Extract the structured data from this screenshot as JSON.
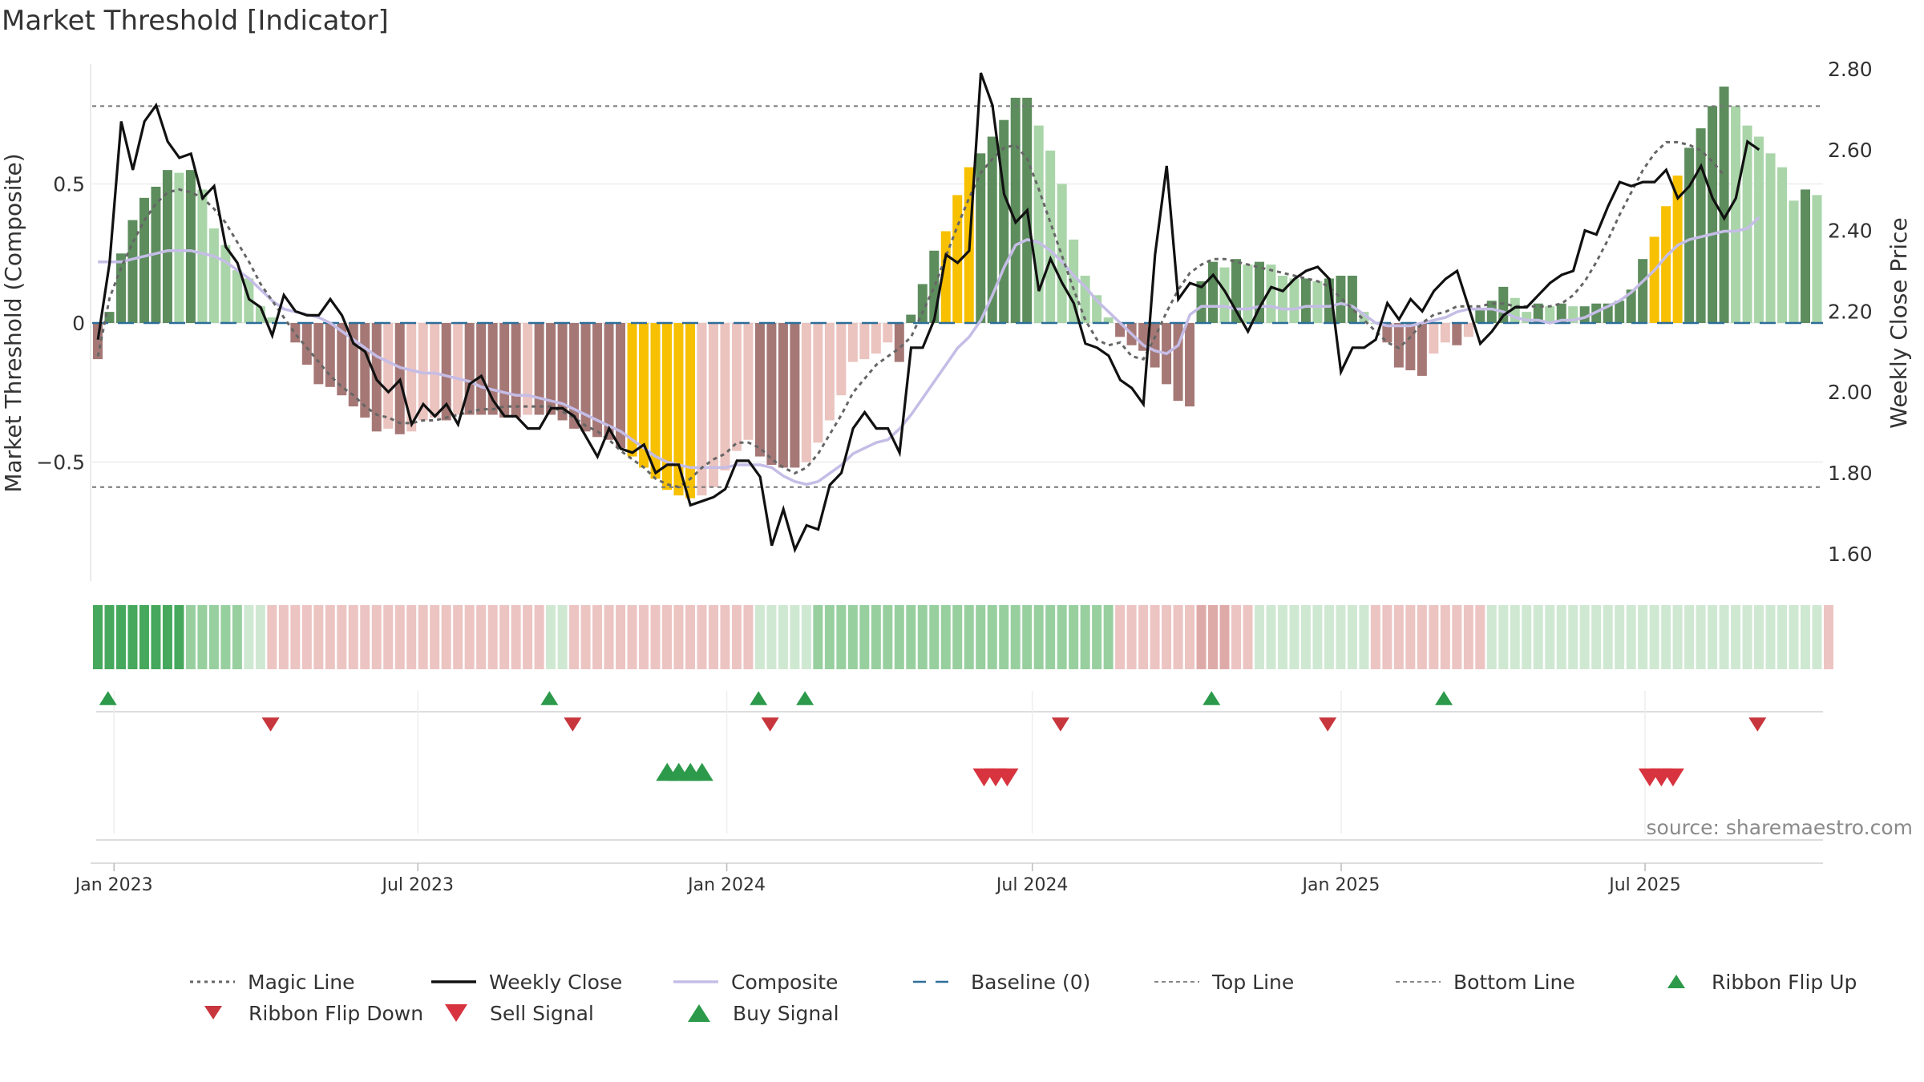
{
  "title": "Market Threshold [Indicator]",
  "source": "source: sharemaestro.com",
  "colors": {
    "dark_green": "#5d8d5d",
    "light_green": "#a9d5a9",
    "dark_red": "#a57876",
    "light_red": "#ebc3bf",
    "gold": "#f7c000",
    "weekly_close": "#111111",
    "composite": "#c5bde6",
    "magic": "#666666",
    "baseline": "#2d6e99",
    "buy": "#2c9a4a",
    "sell": "#d7343f"
  },
  "chart_data": {
    "type": "bar",
    "x_axis": {
      "ticks": [
        "Jan 2023",
        "Jul 2023",
        "Jan 2024",
        "Jul 2024",
        "Jan 2025",
        "Jul 2025"
      ],
      "range": [
        "2022-12-19",
        "2025-10-15"
      ]
    },
    "left_axis": {
      "label": "Market Threshold (Composite)",
      "ticks": [
        "0.5",
        "0",
        "−0.5"
      ],
      "tick_values": [
        0.5,
        0,
        -0.5
      ],
      "ylim": [
        -0.93,
        0.93
      ]
    },
    "right_axis": {
      "label": "Weekly Close Price",
      "ticks": [
        "2.80",
        "2.60",
        "2.40",
        "2.20",
        "2.00",
        "1.80",
        "1.60"
      ],
      "tick_values": [
        2.8,
        2.6,
        2.4,
        2.2,
        2.0,
        1.8,
        1.6
      ],
      "ylim": [
        1.52,
        2.82
      ]
    },
    "top_line": 0.78,
    "bottom_line": -0.59,
    "baseline": 0,
    "composite_bars": [
      -0.13,
      0.04,
      0.25,
      0.37,
      0.45,
      0.49,
      0.55,
      0.54,
      0.55,
      0.48,
      0.34,
      0.28,
      0.19,
      0.16,
      0.06,
      0.02,
      0.0,
      -0.07,
      -0.15,
      -0.22,
      -0.23,
      -0.26,
      -0.3,
      -0.34,
      -0.39,
      -0.38,
      -0.4,
      -0.39,
      -0.35,
      -0.34,
      -0.35,
      -0.33,
      -0.33,
      -0.33,
      -0.33,
      -0.34,
      -0.34,
      -0.33,
      -0.33,
      -0.33,
      -0.35,
      -0.38,
      -0.39,
      -0.41,
      -0.42,
      -0.45,
      -0.48,
      -0.52,
      -0.56,
      -0.6,
      -0.62,
      -0.63,
      -0.62,
      -0.59,
      -0.53,
      -0.46,
      -0.42,
      -0.48,
      -0.51,
      -0.52,
      -0.52,
      -0.5,
      -0.43,
      -0.35,
      -0.26,
      -0.14,
      -0.13,
      -0.11,
      -0.07,
      -0.14,
      0.03,
      0.14,
      0.26,
      0.33,
      0.46,
      0.56,
      0.61,
      0.67,
      0.73,
      0.81,
      0.81,
      0.71,
      0.62,
      0.5,
      0.3,
      0.17,
      0.1,
      0.02,
      -0.05,
      -0.08,
      -0.1,
      -0.16,
      -0.22,
      -0.28,
      -0.3,
      0.15,
      0.22,
      0.2,
      0.23,
      0.21,
      0.22,
      0.21,
      0.17,
      0.16,
      0.16,
      0.15,
      0.16,
      0.17,
      0.17,
      0.04,
      0.0,
      -0.07,
      -0.16,
      -0.17,
      -0.19,
      -0.11,
      -0.07,
      -0.08,
      -0.05,
      0.05,
      0.08,
      0.13,
      0.09,
      0.04,
      0.07,
      0.06,
      0.07,
      0.06,
      0.06,
      0.07,
      0.07,
      0.08,
      0.12,
      0.23,
      0.31,
      0.42,
      0.53,
      0.63,
      0.7,
      0.78,
      0.85,
      0.78,
      0.71,
      0.67,
      0.61,
      0.56,
      0.44,
      0.48,
      0.46
    ],
    "gold_bar_ranges": [
      [
        46,
        51
      ],
      [
        73,
        75
      ],
      [
        134,
        136
      ]
    ],
    "weekly_close": {
      "values": [
        2.13,
        2.32,
        2.67,
        2.55,
        2.67,
        2.71,
        2.62,
        2.58,
        2.59,
        2.48,
        2.51,
        2.36,
        2.32,
        2.23,
        2.21,
        2.14,
        2.24,
        2.2,
        2.19,
        2.19,
        2.23,
        2.19,
        2.12,
        2.1,
        2.03,
        2.0,
        2.03,
        1.92,
        1.97,
        1.94,
        1.97,
        1.92,
        2.02,
        2.04,
        1.98,
        1.94,
        1.94,
        1.91,
        1.91,
        1.96,
        1.96,
        1.94,
        1.89,
        1.84,
        1.91,
        1.86,
        1.85,
        1.87,
        1.8,
        1.82,
        1.82,
        1.72,
        1.73,
        1.74,
        1.76,
        1.83,
        1.83,
        1.79,
        1.62,
        1.71,
        1.61,
        1.67,
        1.66,
        1.77,
        1.8,
        1.91,
        1.95,
        1.91,
        1.91,
        1.85,
        2.11,
        2.11,
        2.18,
        2.34,
        2.32,
        2.35,
        2.79,
        2.71,
        2.49,
        2.42,
        2.45,
        2.25,
        2.33,
        2.27,
        2.22,
        2.12,
        2.11,
        2.09,
        2.03,
        2.01,
        1.97,
        2.34,
        2.56,
        2.23,
        2.27,
        2.26,
        2.29,
        2.25,
        2.2,
        2.15,
        2.21,
        2.26,
        2.25,
        2.28,
        2.3,
        2.31,
        2.28,
        2.05,
        2.11,
        2.11,
        2.13,
        2.22,
        2.18,
        2.23,
        2.2,
        2.25,
        2.28,
        2.3,
        2.21,
        2.12,
        2.15,
        2.19,
        2.21,
        2.21,
        2.24,
        2.27,
        2.29,
        2.3,
        2.4,
        2.39,
        2.46,
        2.52,
        2.51,
        2.52,
        2.52,
        2.55,
        2.48,
        2.51,
        2.56,
        2.48,
        2.43,
        2.48,
        2.62,
        2.6
      ]
    },
    "magic_line": {
      "values": [
        -0.12,
        0.09,
        0.2,
        0.29,
        0.37,
        0.43,
        0.47,
        0.48,
        0.47,
        0.45,
        0.41,
        0.36,
        0.29,
        0.22,
        0.14,
        0.08,
        0.02,
        -0.04,
        -0.09,
        -0.14,
        -0.19,
        -0.23,
        -0.26,
        -0.3,
        -0.33,
        -0.34,
        -0.36,
        -0.36,
        -0.35,
        -0.35,
        -0.34,
        -0.33,
        -0.32,
        -0.31,
        -0.31,
        -0.3,
        -0.3,
        -0.3,
        -0.3,
        -0.3,
        -0.32,
        -0.34,
        -0.37,
        -0.39,
        -0.42,
        -0.46,
        -0.49,
        -0.52,
        -0.56,
        -0.58,
        -0.59,
        -0.56,
        -0.52,
        -0.49,
        -0.47,
        -0.43,
        -0.43,
        -0.45,
        -0.49,
        -0.52,
        -0.54,
        -0.52,
        -0.47,
        -0.4,
        -0.33,
        -0.25,
        -0.2,
        -0.15,
        -0.12,
        -0.09,
        -0.05,
        0.04,
        0.13,
        0.24,
        0.35,
        0.45,
        0.54,
        0.59,
        0.63,
        0.64,
        0.59,
        0.48,
        0.36,
        0.24,
        0.12,
        0.01,
        -0.06,
        -0.08,
        -0.07,
        -0.12,
        -0.13,
        -0.05,
        0.04,
        0.12,
        0.18,
        0.21,
        0.23,
        0.23,
        0.22,
        0.21,
        0.2,
        0.19,
        0.18,
        0.17,
        0.16,
        0.15,
        0.13,
        0.09,
        0.05,
        0.01,
        -0.03,
        -0.07,
        -0.09,
        -0.05,
        0.0,
        0.03,
        0.04,
        0.06,
        0.06,
        0.06,
        0.07,
        0.07,
        0.06,
        0.06,
        0.06,
        0.06,
        0.07,
        0.1,
        0.15,
        0.22,
        0.3,
        0.39,
        0.47,
        0.55,
        0.61,
        0.65,
        0.65,
        0.64,
        0.62,
        0.58,
        0.53
      ]
    },
    "composite_line": {
      "values": [
        0.22,
        0.22,
        0.22,
        0.23,
        0.24,
        0.25,
        0.26,
        0.26,
        0.26,
        0.25,
        0.24,
        0.22,
        0.19,
        0.16,
        0.12,
        0.08,
        0.05,
        0.04,
        0.03,
        0.02,
        0.0,
        -0.03,
        -0.06,
        -0.09,
        -0.12,
        -0.14,
        -0.16,
        -0.17,
        -0.18,
        -0.18,
        -0.19,
        -0.2,
        -0.21,
        -0.23,
        -0.24,
        -0.25,
        -0.26,
        -0.26,
        -0.27,
        -0.28,
        -0.29,
        -0.31,
        -0.33,
        -0.35,
        -0.37,
        -0.39,
        -0.42,
        -0.45,
        -0.48,
        -0.5,
        -0.51,
        -0.52,
        -0.52,
        -0.52,
        -0.52,
        -0.51,
        -0.51,
        -0.51,
        -0.52,
        -0.55,
        -0.57,
        -0.58,
        -0.57,
        -0.54,
        -0.51,
        -0.47,
        -0.45,
        -0.43,
        -0.42,
        -0.38,
        -0.33,
        -0.27,
        -0.21,
        -0.15,
        -0.09,
        -0.05,
        0.01,
        0.1,
        0.2,
        0.28,
        0.3,
        0.29,
        0.26,
        0.22,
        0.17,
        0.13,
        0.08,
        0.04,
        0.0,
        -0.04,
        -0.08,
        -0.1,
        -0.11,
        -0.08,
        0.03,
        0.06,
        0.06,
        0.06,
        0.05,
        0.05,
        0.06,
        0.06,
        0.05,
        0.05,
        0.06,
        0.06,
        0.06,
        0.07,
        0.06,
        0.03,
        0.0,
        -0.01,
        -0.01,
        -0.01,
        0.0,
        0.01,
        0.02,
        0.04,
        0.05,
        0.05,
        0.05,
        0.04,
        0.02,
        0.01,
        0.01,
        0.0,
        0.01,
        0.01,
        0.02,
        0.04,
        0.06,
        0.08,
        0.11,
        0.15,
        0.19,
        0.24,
        0.28,
        0.3,
        0.31,
        0.32,
        0.33,
        0.33,
        0.34,
        0.38
      ]
    },
    "ribbon": [
      2,
      2,
      2,
      2,
      2,
      2,
      2,
      2,
      1,
      1,
      1,
      1,
      1,
      0,
      0,
      -1,
      -1,
      -1,
      -1,
      -1,
      -1,
      -1,
      -1,
      -1,
      -1,
      -1,
      -1,
      -1,
      -1,
      -1,
      -1,
      -1,
      -1,
      -1,
      -1,
      -1,
      -1,
      -1,
      -1,
      0,
      0,
      -1,
      -1,
      -1,
      -1,
      -1,
      -1,
      -1,
      -1,
      -1,
      -1,
      -1,
      -1,
      -1,
      -1,
      -1,
      -1,
      0,
      0,
      0,
      0,
      0,
      1,
      1,
      1,
      1,
      1,
      1,
      1,
      1,
      1,
      1,
      1,
      1,
      1,
      1,
      1,
      1,
      1,
      1,
      1,
      1,
      1,
      1,
      1,
      1,
      1,
      1,
      -1,
      -1,
      -1,
      -1,
      -1,
      -1,
      -1,
      -2,
      -2,
      -2,
      -1,
      -1,
      0,
      0,
      0,
      0,
      0,
      0,
      0,
      0,
      0,
      0,
      -1,
      -1,
      -1,
      -1,
      -1,
      -1,
      -1,
      -1,
      -1,
      -1,
      0,
      0,
      0,
      0,
      0,
      0,
      0,
      0,
      0,
      0,
      0,
      0,
      0,
      0,
      0,
      0,
      0,
      0,
      0,
      0,
      0,
      0,
      0,
      0,
      0,
      0,
      0,
      0,
      0,
      -1
    ],
    "ribbon_flip_up": [
      1,
      39,
      57,
      61,
      96,
      116
    ],
    "ribbon_flip_down": [
      15,
      41,
      58,
      83,
      106,
      143
    ],
    "buy_signals": [
      49,
      50,
      51,
      52
    ],
    "sell_signals": [
      76,
      77,
      78
    ],
    "sell_signals_late": [
      134,
      135,
      136
    ],
    "legend": [
      {
        "label": "Magic Line",
        "style": "dotted"
      },
      {
        "label": "Weekly Close",
        "style": "solid-black"
      },
      {
        "label": "Composite",
        "style": "solid-lavender"
      },
      {
        "label": "Baseline (0)",
        "style": "dashed-blue"
      },
      {
        "label": "Top Line",
        "style": "dashed-grey"
      },
      {
        "label": "Bottom Line",
        "style": "dashed-grey"
      },
      {
        "label": "Ribbon Flip Up",
        "style": "triangle-up-green"
      },
      {
        "label": "Ribbon Flip Down",
        "style": "triangle-down-red"
      },
      {
        "label": "Sell Signal",
        "style": "triangle-down-red-large"
      },
      {
        "label": "Buy Signal",
        "style": "triangle-up-green-large"
      }
    ],
    "grid": true,
    "legend_position": "bottom"
  }
}
